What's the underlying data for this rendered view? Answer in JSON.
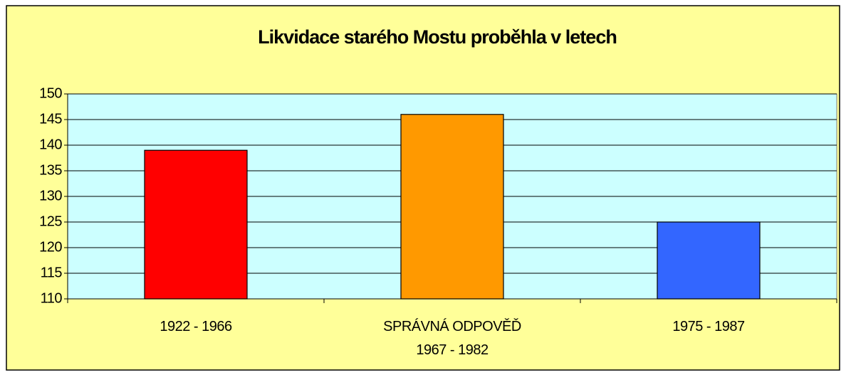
{
  "chart_data": {
    "type": "bar",
    "title": "Likvidace starého Mostu proběhla v letech",
    "categories": [
      "1922 - 1966",
      "SPRÁVNÁ ODPOVĚĎ\n1967 - 1982",
      "1975 - 1987"
    ],
    "values": [
      139,
      146,
      125
    ],
    "colors": [
      "#ff0000",
      "#ff9900",
      "#3366ff"
    ],
    "ylim": [
      110,
      150
    ],
    "yticks": [
      110,
      115,
      120,
      125,
      130,
      135,
      140,
      145,
      150
    ],
    "grid": true
  }
}
